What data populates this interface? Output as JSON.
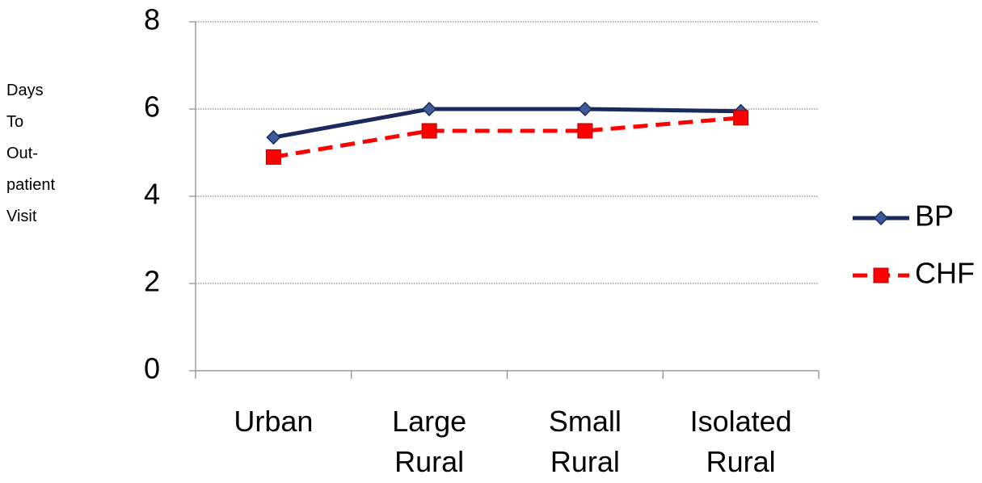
{
  "chart_data": {
    "type": "line",
    "ylabel_lines": [
      "Days",
      "To",
      "Out-",
      "patient",
      "Visit"
    ],
    "categories": [
      "Urban",
      "Large Rural",
      "Small Rural",
      "Isolated Rural"
    ],
    "series": [
      {
        "name": "BP",
        "color": "#1b2a5c",
        "marker": "diamond",
        "dash": false,
        "values": [
          5.35,
          6.0,
          6.0,
          5.95
        ]
      },
      {
        "name": "CHF",
        "color": "#ff0000",
        "marker": "square",
        "dash": true,
        "values": [
          4.9,
          5.5,
          5.5,
          5.8
        ]
      }
    ],
    "ylim": [
      0,
      8
    ],
    "yticks": [
      0,
      2,
      4,
      6,
      8
    ],
    "grid": true,
    "legend": "right"
  }
}
